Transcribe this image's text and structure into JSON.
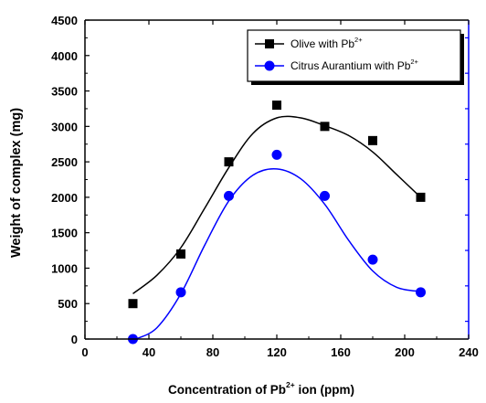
{
  "chart_data": {
    "type": "scatter",
    "title": "",
    "xlabel_main": "Concentration of Pb",
    "xlabel_sup": "2+",
    "xlabel_tail": " ion (ppm)",
    "ylabel": "Weight of complex (mg)",
    "xlim": [
      0,
      240
    ],
    "ylim": [
      0,
      4500
    ],
    "x_ticks": [
      0,
      40,
      80,
      120,
      160,
      200,
      240
    ],
    "y_ticks": [
      0,
      500,
      1000,
      1500,
      2000,
      2500,
      3000,
      3500,
      4000,
      4500
    ],
    "grid": false,
    "legend_position": "top-right",
    "series": [
      {
        "label_main": "Olive with Pb",
        "label_sup": "2+",
        "marker": "square",
        "color": "#000000",
        "points": [
          [
            30,
            500
          ],
          [
            60,
            1200
          ],
          [
            90,
            2500
          ],
          [
            120,
            3300
          ],
          [
            150,
            3000
          ],
          [
            180,
            2800
          ],
          [
            210,
            2000
          ]
        ],
        "fit_curve": [
          [
            30,
            640
          ],
          [
            45,
            900
          ],
          [
            60,
            1290
          ],
          [
            75,
            1850
          ],
          [
            90,
            2420
          ],
          [
            105,
            2900
          ],
          [
            120,
            3120
          ],
          [
            135,
            3120
          ],
          [
            150,
            3010
          ],
          [
            165,
            2870
          ],
          [
            180,
            2640
          ],
          [
            195,
            2320
          ],
          [
            210,
            2000
          ]
        ]
      },
      {
        "label_main": "Citrus Aurantium with Pb",
        "label_sup": "2+",
        "marker": "circle",
        "color": "#0000ff",
        "points": [
          [
            30,
            0
          ],
          [
            60,
            660
          ],
          [
            90,
            2020
          ],
          [
            120,
            2600
          ],
          [
            150,
            2020
          ],
          [
            180,
            1120
          ],
          [
            210,
            660
          ]
        ],
        "fit_curve": [
          [
            32,
            0
          ],
          [
            45,
            160
          ],
          [
            60,
            640
          ],
          [
            75,
            1330
          ],
          [
            90,
            1950
          ],
          [
            105,
            2310
          ],
          [
            120,
            2400
          ],
          [
            135,
            2260
          ],
          [
            150,
            1900
          ],
          [
            165,
            1390
          ],
          [
            180,
            960
          ],
          [
            195,
            730
          ],
          [
            210,
            670
          ]
        ]
      }
    ]
  }
}
